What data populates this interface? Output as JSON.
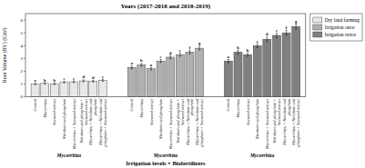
{
  "chart_data": {
    "type": "bar",
    "title": "Years (2017-2018 and 2018-2019)",
    "xlabel": "Irrigation levels × Biofertilizers",
    "ylabel": "Root Volume (RV) (Cm³)",
    "categories": [
      "Control",
      "Mycorrhiza",
      "Seaweed extract",
      "Nitrobein and phosphein",
      "Mycorrhiza + Seaweed extract",
      "Nitrobein and phosphein +\nSeaweed extract",
      "Mycorrhiza + Nitrobein and\nphosphein",
      "Mycorrhiza + Nitrobein and\nphosphein + Seaweed extract"
    ],
    "series": [
      {
        "name": "Dry land farming",
        "color": "#e8e8e8",
        "values": [
          1.0,
          1.05,
          1.02,
          1.15,
          1.18,
          1.25,
          1.22,
          1.3
        ],
        "errors": [
          0.06,
          0.06,
          0.06,
          0.07,
          0.07,
          0.08,
          0.07,
          0.08
        ],
        "letters": [
          "a",
          "b",
          "b",
          "c",
          "c",
          "d",
          "d",
          "e"
        ]
      },
      {
        "name": "Irrigation once",
        "color": "#b0b0b0",
        "values": [
          2.3,
          2.5,
          2.2,
          2.8,
          3.1,
          3.3,
          3.5,
          3.8
        ],
        "errors": [
          0.1,
          0.11,
          0.09,
          0.12,
          0.13,
          0.13,
          0.14,
          0.15
        ],
        "letters": [
          "a",
          "b",
          "a",
          "c",
          "d",
          "e",
          "f",
          "g"
        ]
      },
      {
        "name": "Irrigation twice",
        "color": "#808080",
        "values": [
          2.8,
          3.5,
          3.3,
          4.0,
          4.5,
          4.8,
          5.0,
          5.5
        ],
        "errors": [
          0.12,
          0.14,
          0.13,
          0.16,
          0.17,
          0.18,
          0.19,
          0.2
        ],
        "letters": [
          "a",
          "b",
          "b",
          "c",
          "d",
          "e",
          "f",
          "g"
        ]
      }
    ],
    "annotations": [
      "Mycorrhiza",
      "Mycorrhiza",
      "Mycorrhiza"
    ],
    "ylim": [
      0,
      6.5
    ],
    "yticks": [
      0,
      1,
      2,
      3,
      4,
      5,
      6
    ],
    "grid": false,
    "legend": "right"
  }
}
